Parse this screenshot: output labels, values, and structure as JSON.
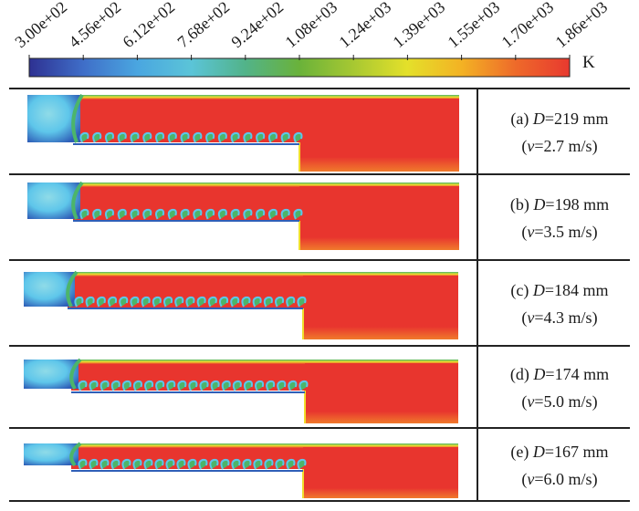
{
  "colorbar": {
    "ticks": [
      "3.00e+02",
      "4.56e+02",
      "6.12e+02",
      "7.68e+02",
      "9.24e+02",
      "1.08e+03",
      "1.24e+03",
      "1.39e+03",
      "1.55e+03",
      "1.70e+03",
      "1.86e+03"
    ],
    "unit": "K",
    "colors": [
      "#2e3192",
      "#3f6ec8",
      "#4aa6e0",
      "#5bc4d8",
      "#52b389",
      "#6ab23a",
      "#a7c832",
      "#e4e02a",
      "#f3b224",
      "#ee6a2a",
      "#e8392f"
    ]
  },
  "panels": [
    {
      "label_prefix": "(a) ",
      "var": "D",
      "value": "=219 mm",
      "sub_var": "v",
      "sub_value": "=2.7 m/s"
    },
    {
      "label_prefix": "(b) ",
      "var": "D",
      "value": "=198 mm",
      "sub_var": "v",
      "sub_value": "=3.5 m/s"
    },
    {
      "label_prefix": "(c) ",
      "var": "D",
      "value": "=184 mm",
      "sub_var": "v",
      "sub_value": "=4.3 m/s"
    },
    {
      "label_prefix": "(d) ",
      "var": "D",
      "value": "=174 mm",
      "sub_var": "v",
      "sub_value": "=5.0 m/s"
    },
    {
      "label_prefix": "(e) ",
      "var": "D",
      "value": "=167 mm",
      "sub_var": "v",
      "sub_value": "=6.0 m/s"
    }
  ],
  "palette": {
    "hot": "#e8352e",
    "cold": "#2f5fb8",
    "cool_cyan": "#5ec6ea",
    "green": "#4cb56a",
    "yellow": "#f0de2c",
    "border": "#222222"
  }
}
